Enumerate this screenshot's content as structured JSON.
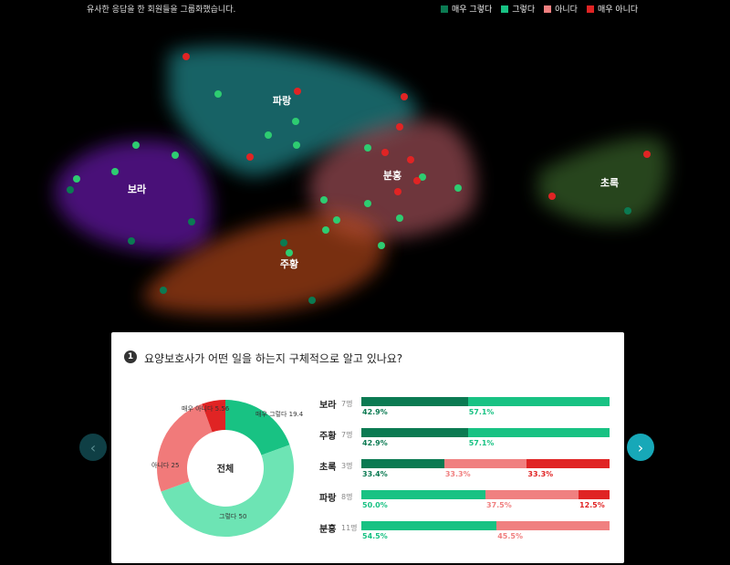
{
  "header": {
    "note": "유사한 응답을 한 회원들을 그룹화했습니다.",
    "legend": [
      {
        "label": "매우 그렇다",
        "color": "#0b7a52"
      },
      {
        "label": "그렇다",
        "color": "#18c283"
      },
      {
        "label": "아니다",
        "color": "#f08080"
      },
      {
        "label": "매우 아니다",
        "color": "#e02424"
      }
    ]
  },
  "clusters": [
    {
      "label": "파랑",
      "color": "#2bb3b8"
    },
    {
      "label": "보라",
      "color": "#7a1fc9"
    },
    {
      "label": "분홍",
      "color": "#c9646e"
    },
    {
      "label": "주황",
      "color": "#c8501c"
    },
    {
      "label": "초록",
      "color": "#4f8a3a"
    }
  ],
  "question": {
    "number": "1",
    "text": "요양보호사가 어떤 일을 하는지 구체적으로 알고 있나요?",
    "donut": {
      "center": "전체",
      "slices": [
        {
          "label": "매우 그렇다 19.44",
          "value": 19.44,
          "color": "#18c283"
        },
        {
          "label": "그렇다 50",
          "value": 50,
          "color": "#6de4b4"
        },
        {
          "label": "아니다 25",
          "value": 25,
          "color": "#f17a7a"
        },
        {
          "label": "매우 아니다 5.56",
          "value": 5.56,
          "color": "#e02424"
        }
      ]
    },
    "groups": [
      {
        "name": "보라",
        "count": "7명",
        "segments": [
          {
            "pct": 42.9,
            "label": "42.9%",
            "color": "#0b7a52"
          },
          {
            "pct": 57.1,
            "label": "57.1%",
            "color": "#18c283"
          }
        ]
      },
      {
        "name": "주황",
        "count": "7명",
        "segments": [
          {
            "pct": 42.9,
            "label": "42.9%",
            "color": "#0b7a52"
          },
          {
            "pct": 57.1,
            "label": "57.1%",
            "color": "#18c283"
          }
        ]
      },
      {
        "name": "초록",
        "count": "3명",
        "segments": [
          {
            "pct": 33.4,
            "label": "33.4%",
            "color": "#0b7a52"
          },
          {
            "pct": 33.3,
            "label": "33.3%",
            "color": "#f08080"
          },
          {
            "pct": 33.3,
            "label": "33.3%",
            "color": "#e02424"
          }
        ]
      },
      {
        "name": "파랑",
        "count": "8명",
        "segments": [
          {
            "pct": 50.0,
            "label": "50.0%",
            "color": "#18c283"
          },
          {
            "pct": 37.5,
            "label": "37.5%",
            "color": "#f08080"
          },
          {
            "pct": 12.5,
            "label": "12.5%",
            "color": "#e02424"
          }
        ]
      },
      {
        "name": "분홍",
        "count": "11명",
        "segments": [
          {
            "pct": 54.5,
            "label": "54.5%",
            "color": "#18c283"
          },
          {
            "pct": 45.5,
            "label": "45.5%",
            "color": "#f08080"
          }
        ]
      }
    ]
  },
  "nav": {
    "prev_icon": "chevron-left-icon",
    "next_icon": "chevron-right-icon",
    "prev_glyph": "‹",
    "next_glyph": "›"
  }
}
